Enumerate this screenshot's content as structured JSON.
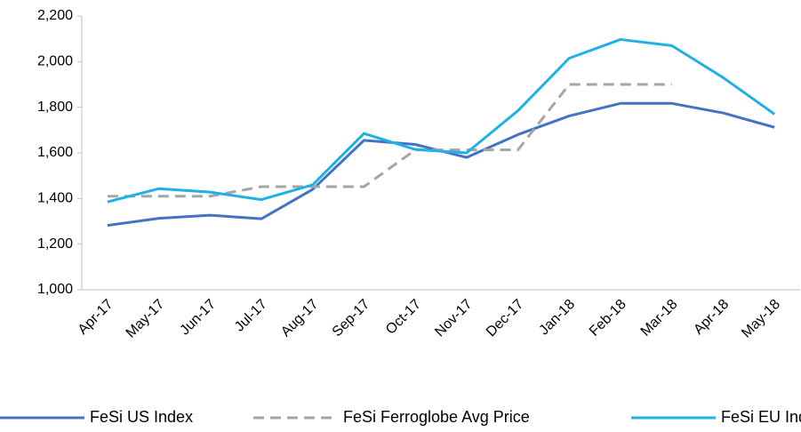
{
  "chart_data": {
    "type": "line",
    "categories": [
      "Apr-17",
      "May-17",
      "Jun-17",
      "Jul-17",
      "Aug-17",
      "Sep-17",
      "Oct-17",
      "Nov-17",
      "Dec-17",
      "Jan-18",
      "Feb-18",
      "Mar-18",
      "Apr-18",
      "May-18"
    ],
    "series": [
      {
        "name": "FeSi US Index",
        "color": "#4472c4",
        "dash": false,
        "values": [
          1282,
          1313,
          1327,
          1311,
          1440,
          1655,
          1637,
          1580,
          1680,
          1762,
          1817,
          1817,
          1775,
          1712
        ]
      },
      {
        "name": "FeSi Ferroglobe Avg Price",
        "color": "#a5a5a5",
        "dash": true,
        "values": [
          1410,
          1410,
          1410,
          1452,
          1452,
          1452,
          1613,
          1613,
          1613,
          1900,
          1900,
          1900,
          null,
          null
        ]
      },
      {
        "name": "FeSi EU Index",
        "color": "#1fb0e6",
        "dash": false,
        "values": [
          1385,
          1443,
          1428,
          1395,
          1460,
          1685,
          1615,
          1600,
          1785,
          2015,
          2097,
          2070,
          1930,
          1770
        ]
      }
    ],
    "ylim": [
      1000,
      2200
    ],
    "yticks": [
      {
        "value": 1000,
        "label": "1,000"
      },
      {
        "value": 1200,
        "label": "1,200"
      },
      {
        "value": 1400,
        "label": "1,400"
      },
      {
        "value": 1600,
        "label": "1,600"
      },
      {
        "value": 1800,
        "label": "1,800"
      },
      {
        "value": 2000,
        "label": "2,000"
      },
      {
        "value": 2200,
        "label": "2,200"
      }
    ],
    "grid": false,
    "legend": "bottom"
  }
}
